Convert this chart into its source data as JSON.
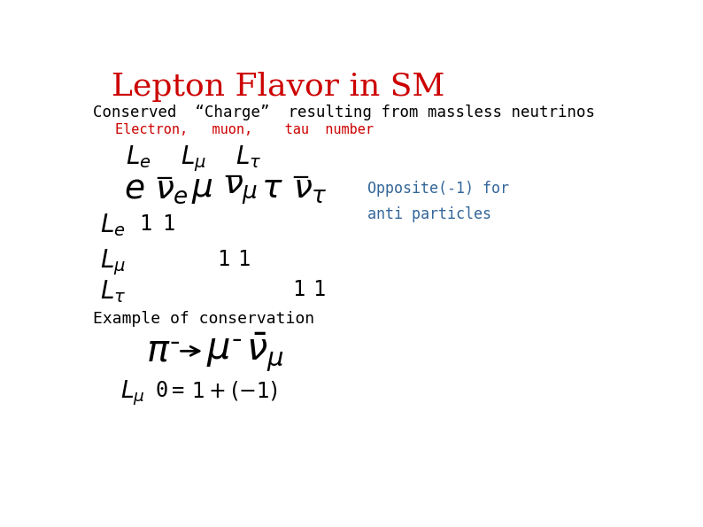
{
  "title": "Lepton Flavor in SM",
  "title_color": "#cc0000",
  "bg_color": "#ffffff",
  "text_color": "#000000",
  "blue_color": "#336699",
  "red_color": "#cc0000",
  "line1": "Conserved  “Charge”  resulting from massless neutrinos",
  "line2": "Electron,   muon,    tau  number",
  "opposite_text": "Opposite(-1) for\nanti particles",
  "example_text": "Example of conservation"
}
